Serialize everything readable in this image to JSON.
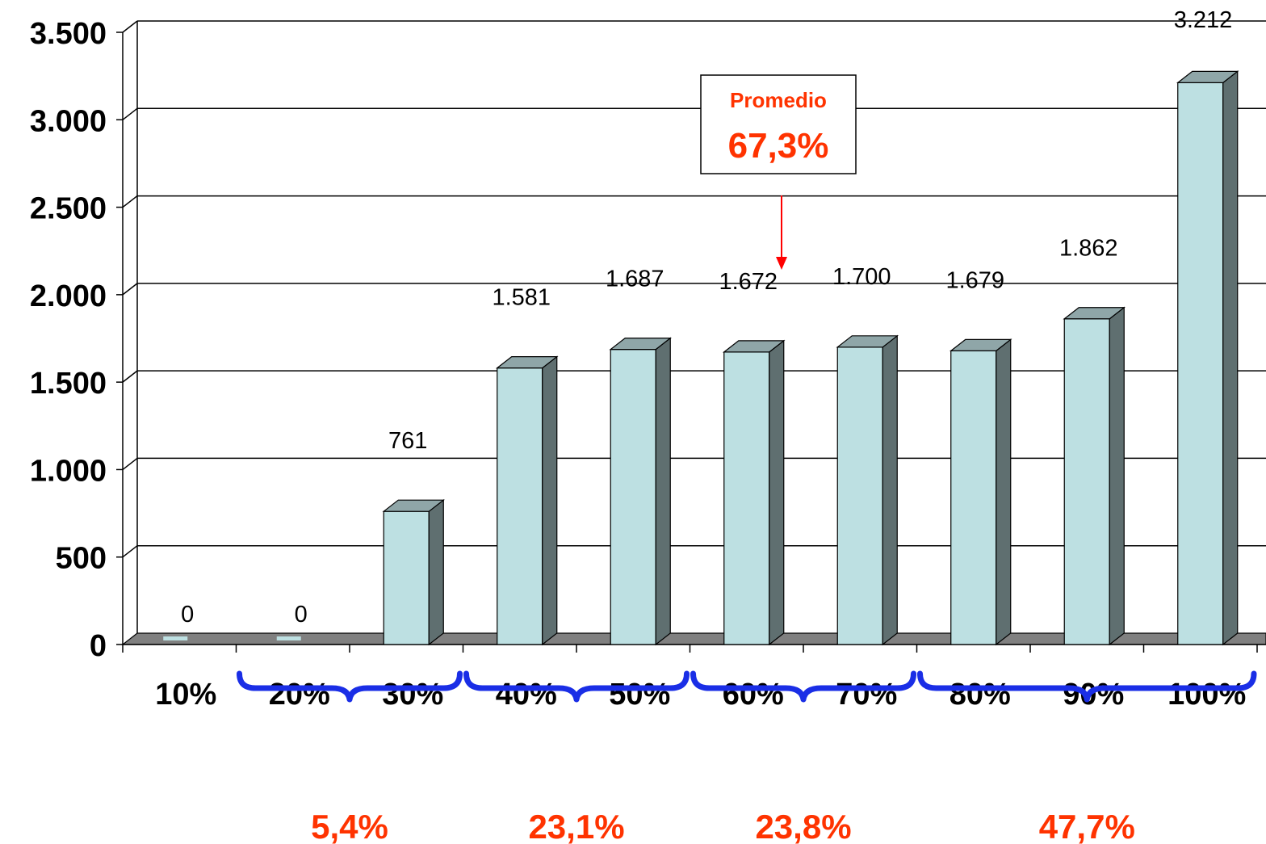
{
  "chart_data": {
    "type": "bar",
    "categories": [
      "10%",
      "20%",
      "30%",
      "40%",
      "50%",
      "60%",
      "70%",
      "80%",
      "90%",
      "100%"
    ],
    "values": [
      0,
      0,
      761,
      1581,
      1687,
      1672,
      1700,
      1679,
      1862,
      3212
    ],
    "data_labels": [
      "0",
      "0",
      "761",
      "1.581",
      "1.687",
      "1.672",
      "1.700",
      "1.679",
      "1.862",
      "3.212"
    ],
    "y_ticks": [
      0,
      500,
      1000,
      1500,
      2000,
      2500,
      3000,
      3500
    ],
    "y_tick_labels": [
      "0",
      "500",
      "1.000",
      "1.500",
      "2.000",
      "2.500",
      "3.000",
      "3.500"
    ],
    "ylim": [
      0,
      3500
    ],
    "title": "",
    "xlabel": "",
    "ylabel": "",
    "grid": true,
    "bar_style": "3d",
    "colors": {
      "bar_front": "#bde0e2",
      "bar_top": "#8fa6a8",
      "bar_side": "#5f6f70",
      "floor": "#808080",
      "annotation": "#ff3300",
      "brace": "#1a2ee6",
      "arrow": "#ff0000"
    },
    "annotation": {
      "title": "Promedio",
      "value": "67,3%",
      "points_to": "60%"
    },
    "groups": [
      {
        "label": "5,4%",
        "from": "20%",
        "to": "30%"
      },
      {
        "label": "23,1%",
        "from": "40%",
        "to": "50%"
      },
      {
        "label": "23,8%",
        "from": "60%",
        "to": "70%"
      },
      {
        "label": "47,7%",
        "from": "80%",
        "to": "100%"
      }
    ]
  }
}
